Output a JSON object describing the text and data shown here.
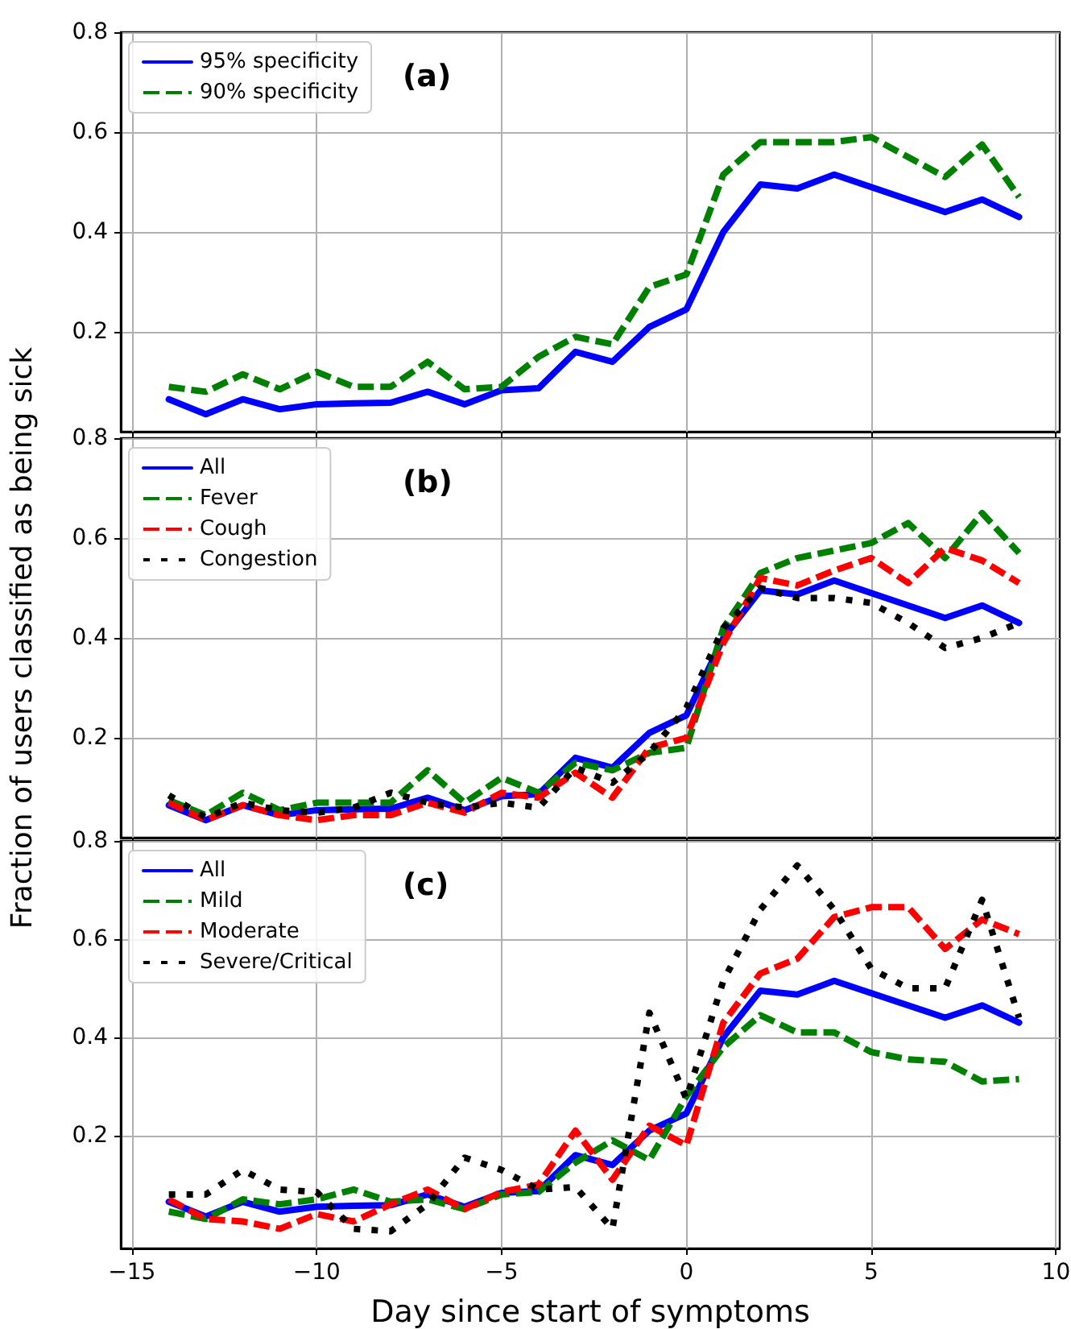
{
  "chart_data": [
    {
      "type": "line",
      "annotations": [
        "(a)"
      ],
      "x": [
        -14,
        -13,
        -12,
        -11,
        -10,
        -9,
        -8,
        -7,
        -6,
        -5,
        -4,
        -3,
        -2,
        -1,
        0,
        1,
        2,
        3,
        4,
        5,
        6,
        7,
        8,
        9
      ],
      "xlim": [
        -15.3,
        10.1
      ],
      "xticks": [
        -15,
        -10,
        -5,
        0,
        5,
        10
      ],
      "ylim": [
        0,
        0.8
      ],
      "yticks": [
        0.2,
        0.4,
        0.6,
        0.8
      ],
      "tick_labels": "y",
      "grid": true,
      "legend": "top left",
      "marker": "none",
      "series": [
        {
          "name": "95% specificity",
          "color": "#0000ff",
          "line_style": "solid",
          "values": [
            0.065,
            0.035,
            0.065,
            0.045,
            0.055,
            0.057,
            0.058,
            0.08,
            0.055,
            0.083,
            0.087,
            0.16,
            0.14,
            0.21,
            0.245,
            0.4,
            0.495,
            0.487,
            0.515,
            0.49,
            0.465,
            0.44,
            0.465,
            0.43
          ]
        },
        {
          "name": "90% specificity",
          "color": "#008000",
          "line_style": "dashed",
          "values": [
            0.09,
            0.08,
            0.115,
            0.085,
            0.12,
            0.09,
            0.09,
            0.14,
            0.085,
            0.09,
            0.15,
            0.19,
            0.175,
            0.29,
            0.315,
            0.515,
            0.58,
            0.58,
            0.58,
            0.59,
            0.55,
            0.51,
            0.575,
            0.47
          ]
        }
      ]
    },
    {
      "type": "line",
      "annotations": [
        "(b)"
      ],
      "ylabel": "Fraction of users classified as being sick",
      "x": [
        -14,
        -13,
        -12,
        -11,
        -10,
        -9,
        -8,
        -7,
        -6,
        -5,
        -4,
        -3,
        -2,
        -1,
        0,
        1,
        2,
        3,
        4,
        5,
        6,
        7,
        8,
        9
      ],
      "xlim": [
        -15.3,
        10.1
      ],
      "xticks": [
        -15,
        -10,
        -5,
        0,
        5,
        10
      ],
      "ylim": [
        0,
        0.8
      ],
      "yticks": [
        0.2,
        0.4,
        0.6,
        0.8
      ],
      "tick_labels": "y",
      "grid": true,
      "legend": "top left",
      "marker": "none",
      "series": [
        {
          "name": "All",
          "color": "#0000ff",
          "line_style": "solid",
          "values": [
            0.065,
            0.035,
            0.065,
            0.045,
            0.055,
            0.057,
            0.058,
            0.08,
            0.055,
            0.083,
            0.087,
            0.16,
            0.14,
            0.21,
            0.245,
            0.4,
            0.495,
            0.487,
            0.515,
            0.49,
            0.465,
            0.44,
            0.465,
            0.43
          ]
        },
        {
          "name": "Fever",
          "color": "#008000",
          "line_style": "dashed",
          "values": [
            0.075,
            0.045,
            0.09,
            0.055,
            0.07,
            0.07,
            0.07,
            0.135,
            0.07,
            0.12,
            0.09,
            0.15,
            0.135,
            0.17,
            0.18,
            0.42,
            0.53,
            0.56,
            0.575,
            0.59,
            0.63,
            0.56,
            0.65,
            0.57
          ]
        },
        {
          "name": "Cough",
          "color": "#ff0000",
          "line_style": "dashed",
          "values": [
            0.07,
            0.035,
            0.065,
            0.045,
            0.035,
            0.045,
            0.045,
            0.07,
            0.05,
            0.09,
            0.08,
            0.13,
            0.08,
            0.18,
            0.2,
            0.39,
            0.52,
            0.505,
            0.535,
            0.56,
            0.51,
            0.58,
            0.555,
            0.51
          ]
        },
        {
          "name": "Congestion",
          "color": "#000000",
          "line_style": "dotted",
          "values": [
            0.085,
            0.04,
            0.07,
            0.055,
            0.05,
            0.06,
            0.09,
            0.07,
            0.06,
            0.07,
            0.06,
            0.14,
            0.11,
            0.17,
            0.26,
            0.42,
            0.5,
            0.48,
            0.48,
            0.47,
            0.43,
            0.38,
            0.4,
            0.43
          ]
        }
      ]
    },
    {
      "type": "line",
      "annotations": [
        "(c)"
      ],
      "xlabel": "Day since start of symptoms",
      "x": [
        -14,
        -13,
        -12,
        -11,
        -10,
        -9,
        -8,
        -7,
        -6,
        -5,
        -4,
        -3,
        -2,
        -1,
        0,
        1,
        2,
        3,
        4,
        5,
        6,
        7,
        8,
        9
      ],
      "xlim": [
        -15.3,
        10.1
      ],
      "xticks": [
        -15,
        -10,
        -5,
        0,
        5,
        10
      ],
      "ylim": [
        -0.03,
        0.8
      ],
      "yticks": [
        0.2,
        0.4,
        0.6,
        0.8
      ],
      "grid": true,
      "legend": "top left",
      "marker": "none",
      "series": [
        {
          "name": "All",
          "color": "#0000ff",
          "line_style": "solid",
          "values": [
            0.065,
            0.035,
            0.065,
            0.045,
            0.055,
            0.057,
            0.058,
            0.08,
            0.055,
            0.083,
            0.087,
            0.16,
            0.14,
            0.21,
            0.245,
            0.4,
            0.495,
            0.487,
            0.515,
            0.49,
            0.465,
            0.44,
            0.465,
            0.43
          ]
        },
        {
          "name": "Mild",
          "color": "#008000",
          "line_style": "dashed",
          "values": [
            0.045,
            0.03,
            0.07,
            0.06,
            0.07,
            0.09,
            0.065,
            0.07,
            0.05,
            0.08,
            0.085,
            0.145,
            0.19,
            0.15,
            0.28,
            0.38,
            0.445,
            0.41,
            0.41,
            0.37,
            0.355,
            0.35,
            0.31,
            0.315
          ]
        },
        {
          "name": "Moderate",
          "color": "#ff0000",
          "line_style": "dashed",
          "values": [
            0.07,
            0.03,
            0.025,
            0.01,
            0.04,
            0.025,
            0.06,
            0.09,
            0.05,
            0.085,
            0.1,
            0.21,
            0.11,
            0.22,
            0.18,
            0.43,
            0.53,
            0.56,
            0.645,
            0.665,
            0.665,
            0.58,
            0.64,
            0.61
          ]
        },
        {
          "name": "Severe/Critical",
          "color": "#000000",
          "line_style": "dotted",
          "values": [
            0.08,
            0.08,
            0.13,
            0.09,
            0.085,
            0.01,
            0.005,
            0.06,
            0.155,
            0.13,
            0.09,
            0.095,
            0.01,
            0.45,
            0.275,
            0.515,
            0.66,
            0.75,
            0.66,
            0.54,
            0.5,
            0.5,
            0.68,
            0.44
          ]
        }
      ]
    }
  ]
}
